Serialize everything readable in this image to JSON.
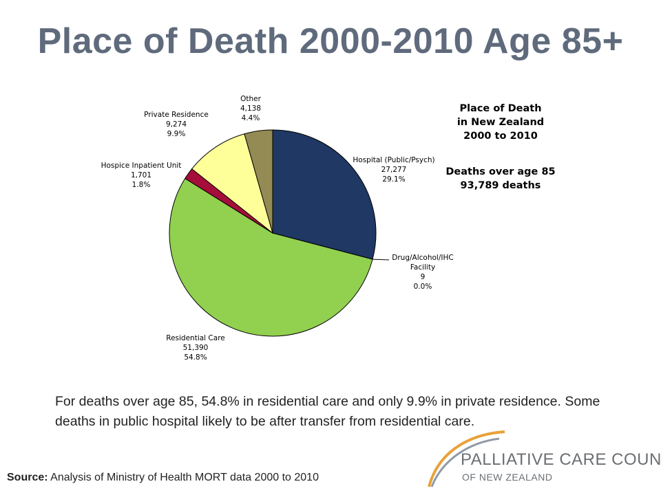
{
  "slide": {
    "title": "Place of Death 2000-2010 Age 85+",
    "summary": "For deaths over age 85, 54.8% in residential care and only 9.9% in private residence. Some deaths in public hospital likely to be after transfer from residential care.",
    "source_label": "Source:",
    "source_text": " Analysis of Ministry of Health MORT data 2000 to 2010"
  },
  "side_note": {
    "heading_lines": [
      "Place of Death",
      "in New Zealand",
      "2000 to 2010"
    ],
    "sub_lines": [
      "Deaths over age 85",
      "93,789 deaths"
    ]
  },
  "logo": {
    "line1": "PALLIATIVE CARE COUNCIL",
    "line2": "OF NEW ZEALAND",
    "colors": {
      "arc_gold": "#e8a13a",
      "arc_grey": "#8f9aa6",
      "text": "#6b6f73"
    }
  },
  "chart_data": {
    "type": "pie",
    "total": 93789,
    "slices": [
      {
        "name": "Hospital (Public/Psych)",
        "label_lines": [
          "Hospital (Public/Psych)",
          "27,277",
          "29.1%"
        ],
        "value": 27277,
        "percent": 29.1,
        "color": "#1f3864"
      },
      {
        "name": "Drug/Alcohol/IHC Facility",
        "label_lines": [
          "Drug/Alcohol/IHC",
          "Facility",
          "9",
          "0.0%"
        ],
        "value": 9,
        "percent": 0.0,
        "color": "#7f7f7f"
      },
      {
        "name": "Residential Care",
        "label_lines": [
          "Residential Care",
          "51,390",
          "54.8%"
        ],
        "value": 51390,
        "percent": 54.8,
        "color": "#92d050"
      },
      {
        "name": "Hospice Inpatient Unit",
        "label_lines": [
          "Hospice Inpatient Unit",
          "1,701",
          "1.8%"
        ],
        "value": 1701,
        "percent": 1.8,
        "color": "#a50e3a"
      },
      {
        "name": "Private Residence",
        "label_lines": [
          "Private Residence",
          "9,274",
          "9.9%"
        ],
        "value": 9274,
        "percent": 9.9,
        "color": "#ffff99"
      },
      {
        "name": "Other",
        "label_lines": [
          "Other",
          "4,138",
          "4.4%"
        ],
        "value": 4138,
        "percent": 4.4,
        "color": "#948a54"
      }
    ]
  }
}
